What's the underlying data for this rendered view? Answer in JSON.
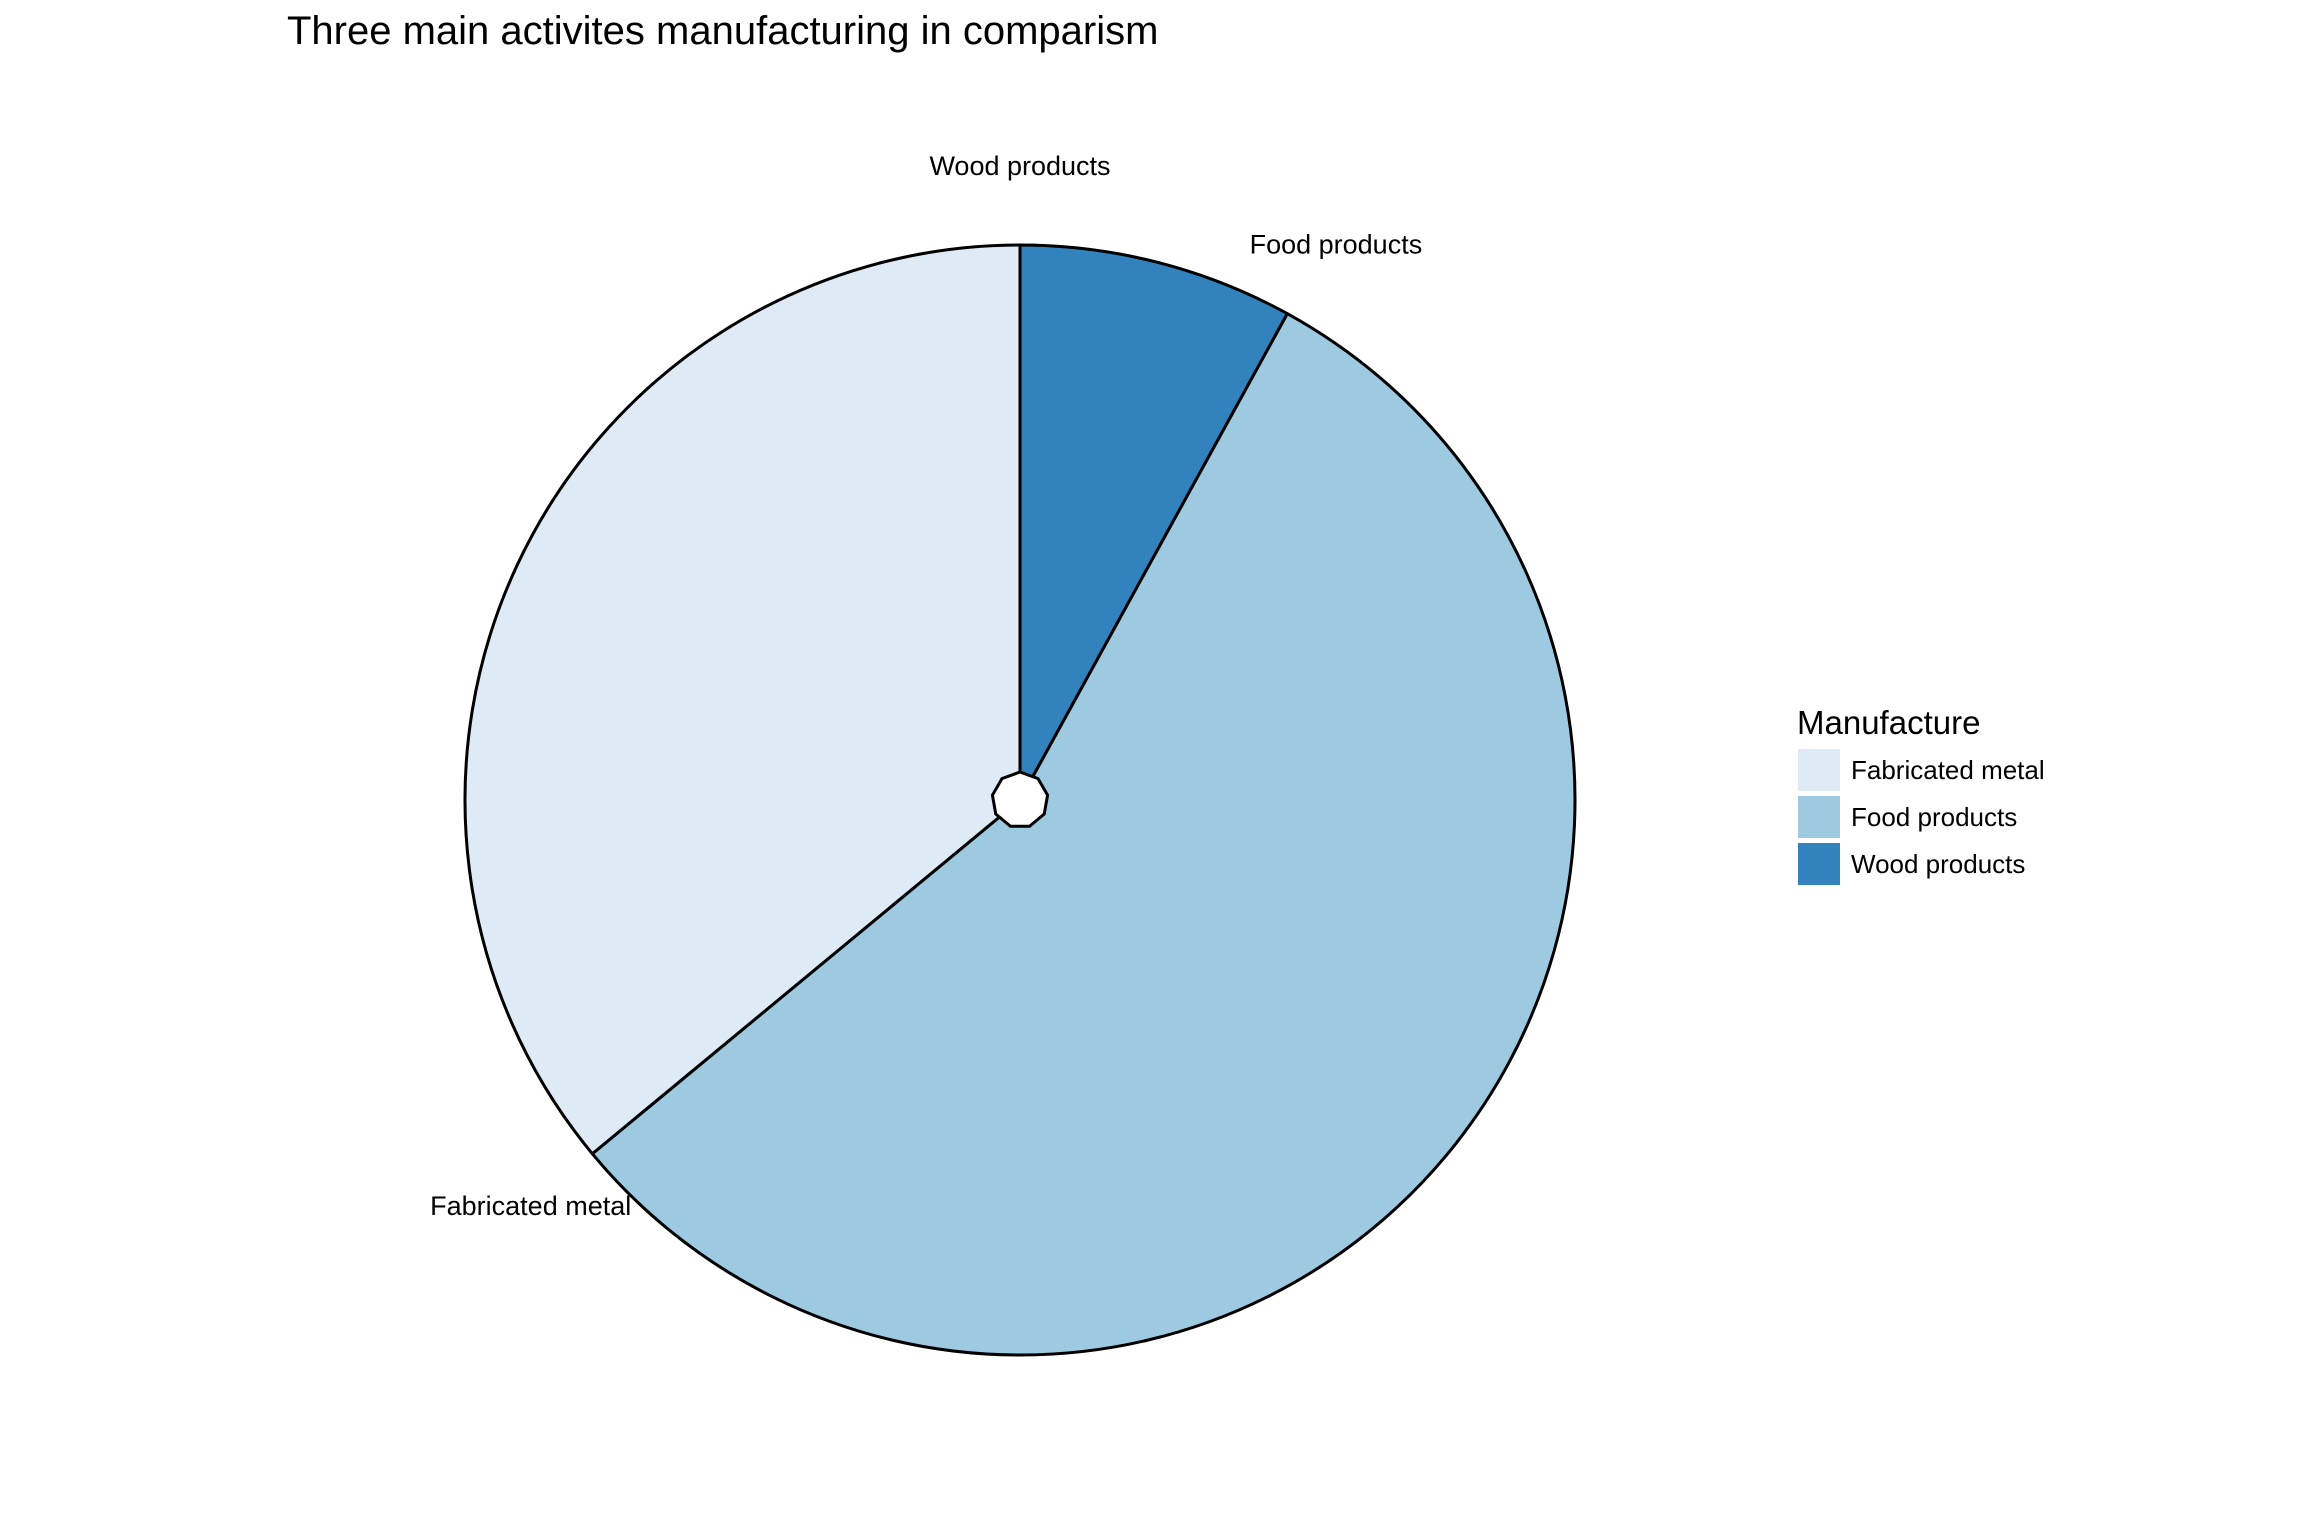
{
  "chart_data": {
    "type": "pie",
    "title": "Three main activites manufacturing in comparism",
    "slices": [
      {
        "label": "Wood products",
        "value": 8,
        "color": "#3182bd"
      },
      {
        "label": "Food products",
        "value": 56,
        "color": "#9ecae1"
      },
      {
        "label": "Fabricated metal",
        "value": 36,
        "color": "#deebf7"
      }
    ],
    "legend": {
      "title": "Manufacture",
      "position": "right",
      "items": [
        {
          "label": "Fabricated metal",
          "color": "#deebf7"
        },
        {
          "label": "Food products",
          "color": "#9ecae1"
        },
        {
          "label": "Wood products",
          "color": "#3182bd"
        }
      ]
    }
  }
}
